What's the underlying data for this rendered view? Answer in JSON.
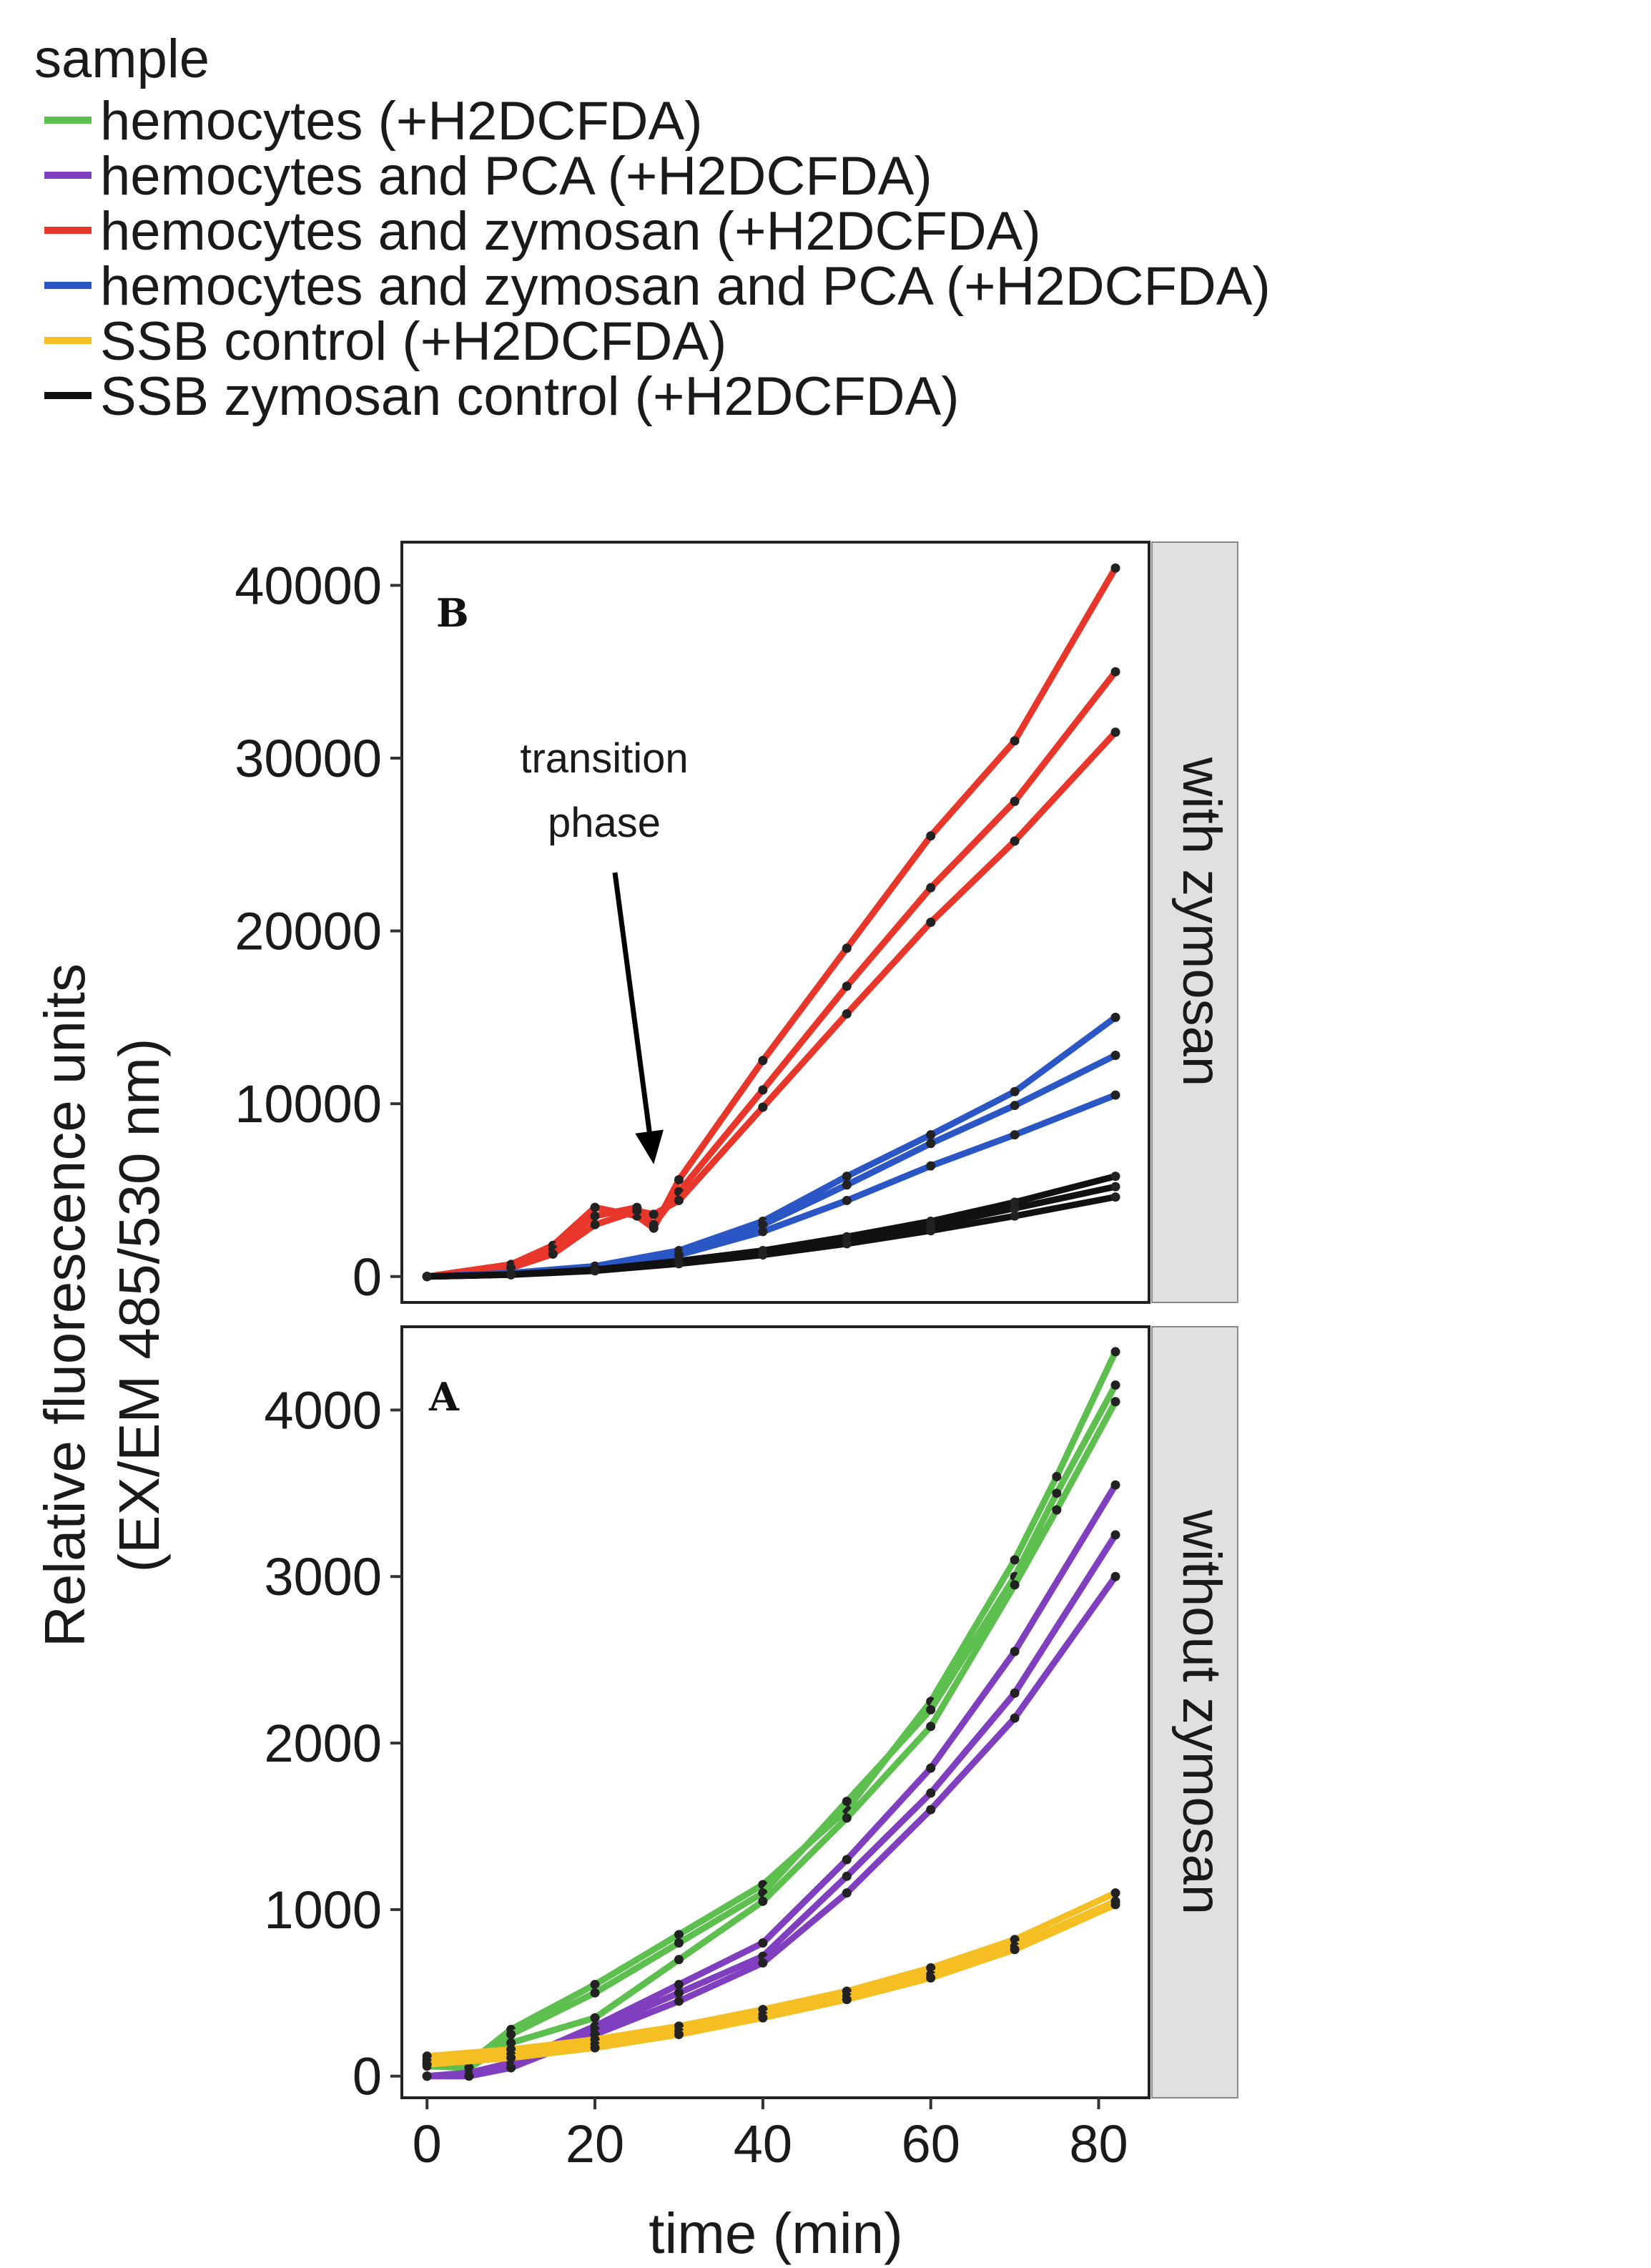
{
  "legend": {
    "title": "sample",
    "entries": [
      {
        "label": "hemocytes (+H2DCFDA)",
        "color": "#5cbf4e"
      },
      {
        "label": "hemocytes and PCA (+H2DCFDA)",
        "color": "#7f3fbf"
      },
      {
        "label": "hemocytes and zymosan (+H2DCFDA)",
        "color": "#e8372a"
      },
      {
        "label": "hemocytes and zymosan and PCA (+H2DCFDA)",
        "color": "#2a56c6"
      },
      {
        "label": "SSB control (+H2DCFDA)",
        "color": "#f5be23"
      },
      {
        "label": "SSB zymosan control (+H2DCFDA)",
        "color": "#111111"
      }
    ]
  },
  "axes": {
    "ylabel_line1": "Relative fluorescence units",
    "ylabel_line2": "(EX/EM 485/530 nm)",
    "xlabel": "time (min)"
  },
  "chart_data": [
    {
      "type": "line",
      "panel_label": "B",
      "strip_label": "with zymosan",
      "annotation": {
        "line1": "transition",
        "line2": "phase",
        "points_to_x": 27,
        "points_to_y": 6500
      },
      "xlim": [
        -3,
        86
      ],
      "ylim": [
        -1500,
        42500
      ],
      "x_ticks": [
        0,
        20,
        40,
        60,
        80
      ],
      "x_tick_labels": [
        "0",
        "20",
        "40",
        "60",
        "80"
      ],
      "y_ticks": [
        0,
        10000,
        20000,
        30000,
        40000
      ],
      "y_tick_labels": [
        "0",
        "10000",
        "20000",
        "30000",
        "40000"
      ],
      "series": [
        {
          "name": "hemocytes and zymosan (+H2DCFDA)",
          "color": "#e8372a",
          "x": [
            0,
            10,
            15,
            20,
            25,
            27,
            30,
            40,
            50,
            60,
            70,
            82
          ],
          "y": [
            0,
            700,
            1800,
            4000,
            3500,
            2800,
            5600,
            12500,
            19000,
            25500,
            31000,
            41000
          ]
        },
        {
          "name": "hemocytes and zymosan (+H2DCFDA)",
          "color": "#e8372a",
          "x": [
            0,
            10,
            15,
            20,
            25,
            27,
            30,
            40,
            50,
            60,
            70,
            82
          ],
          "y": [
            0,
            600,
            1600,
            3500,
            4000,
            3000,
            4900,
            10800,
            16800,
            22500,
            27500,
            35000
          ]
        },
        {
          "name": "hemocytes and zymosan (+H2DCFDA)",
          "color": "#e8372a",
          "x": [
            0,
            10,
            15,
            20,
            25,
            27,
            30,
            40,
            50,
            60,
            70,
            82
          ],
          "y": [
            0,
            500,
            1300,
            3000,
            3800,
            3600,
            4400,
            9800,
            15200,
            20500,
            25200,
            31500
          ]
        },
        {
          "name": "hemocytes and zymosan and PCA (+H2DCFDA)",
          "color": "#2a56c6",
          "x": [
            0,
            10,
            20,
            30,
            40,
            50,
            60,
            70,
            82
          ],
          "y": [
            0,
            200,
            600,
            1500,
            3200,
            5800,
            8200,
            10700,
            15000
          ]
        },
        {
          "name": "hemocytes and zymosan and PCA (+H2DCFDA)",
          "color": "#2a56c6",
          "x": [
            0,
            10,
            20,
            30,
            40,
            50,
            60,
            70,
            82
          ],
          "y": [
            0,
            180,
            550,
            1400,
            3000,
            5300,
            7700,
            9900,
            12800
          ]
        },
        {
          "name": "hemocytes and zymosan and PCA (+H2DCFDA)",
          "color": "#2a56c6",
          "x": [
            0,
            10,
            20,
            30,
            40,
            50,
            60,
            70,
            82
          ],
          "y": [
            0,
            150,
            500,
            1250,
            2600,
            4400,
            6400,
            8200,
            10500
          ]
        },
        {
          "name": "SSB zymosan control (+H2DCFDA)",
          "color": "#111111",
          "x": [
            0,
            10,
            20,
            30,
            40,
            50,
            60,
            70,
            82
          ],
          "y": [
            0,
            120,
            400,
            900,
            1500,
            2300,
            3200,
            4300,
            5800
          ]
        },
        {
          "name": "SSB zymosan control (+H2DCFDA)",
          "color": "#111111",
          "x": [
            0,
            10,
            20,
            30,
            40,
            50,
            60,
            70,
            82
          ],
          "y": [
            0,
            110,
            370,
            820,
            1380,
            2100,
            2950,
            3950,
            5200
          ]
        },
        {
          "name": "SSB zymosan control (+H2DCFDA)",
          "color": "#111111",
          "x": [
            0,
            10,
            20,
            30,
            40,
            50,
            60,
            70,
            82
          ],
          "y": [
            0,
            100,
            330,
            740,
            1250,
            1900,
            2650,
            3500,
            4600
          ]
        }
      ]
    },
    {
      "type": "line",
      "panel_label": "A",
      "strip_label": "without zymosan",
      "xlim": [
        -3,
        86
      ],
      "ylim": [
        -130,
        4500
      ],
      "x_ticks": [
        0,
        20,
        40,
        60,
        80
      ],
      "x_tick_labels": [
        "0",
        "20",
        "40",
        "60",
        "80"
      ],
      "y_ticks": [
        0,
        1000,
        2000,
        3000,
        4000
      ],
      "y_tick_labels": [
        "0",
        "1000",
        "2000",
        "3000",
        "4000"
      ],
      "series": [
        {
          "name": "hemocytes (+H2DCFDA)",
          "color": "#5cbf4e",
          "x": [
            0,
            5,
            10,
            20,
            30,
            40,
            50,
            60,
            70,
            75,
            82
          ],
          "y": [
            100,
            80,
            280,
            550,
            850,
            1150,
            1600,
            2250,
            3100,
            3600,
            4350
          ]
        },
        {
          "name": "hemocytes (+H2DCFDA)",
          "color": "#5cbf4e",
          "x": [
            0,
            5,
            10,
            20,
            30,
            40,
            50,
            60,
            70,
            75,
            82
          ],
          "y": [
            80,
            60,
            250,
            500,
            800,
            1100,
            1650,
            2200,
            3000,
            3500,
            4150
          ]
        },
        {
          "name": "hemocytes (+H2DCFDA)",
          "color": "#5cbf4e",
          "x": [
            0,
            5,
            10,
            20,
            30,
            40,
            50,
            60,
            70,
            75,
            82
          ],
          "y": [
            60,
            50,
            200,
            350,
            700,
            1050,
            1550,
            2100,
            2950,
            3400,
            4050
          ]
        },
        {
          "name": "hemocytes and PCA (+H2DCFDA)",
          "color": "#7f3fbf",
          "x": [
            0,
            5,
            10,
            20,
            30,
            40,
            50,
            60,
            70,
            82
          ],
          "y": [
            0,
            20,
            80,
            300,
            550,
            800,
            1300,
            1850,
            2550,
            3550
          ]
        },
        {
          "name": "hemocytes and PCA (+H2DCFDA)",
          "color": "#7f3fbf",
          "x": [
            0,
            5,
            10,
            20,
            30,
            40,
            50,
            60,
            70,
            82
          ],
          "y": [
            0,
            10,
            60,
            280,
            500,
            720,
            1200,
            1700,
            2300,
            3250
          ]
        },
        {
          "name": "hemocytes and PCA (+H2DCFDA)",
          "color": "#7f3fbf",
          "x": [
            0,
            5,
            10,
            20,
            30,
            40,
            50,
            60,
            70,
            82
          ],
          "y": [
            0,
            0,
            50,
            250,
            450,
            680,
            1100,
            1600,
            2150,
            3000
          ]
        },
        {
          "name": "SSB control (+H2DCFDA)",
          "color": "#f5be23",
          "x": [
            0,
            10,
            20,
            30,
            40,
            50,
            60,
            70,
            82
          ],
          "y": [
            120,
            160,
            220,
            300,
            400,
            510,
            650,
            820,
            1100
          ]
        },
        {
          "name": "SSB control (+H2DCFDA)",
          "color": "#f5be23",
          "x": [
            0,
            10,
            20,
            30,
            40,
            50,
            60,
            70,
            82
          ],
          "y": [
            90,
            130,
            190,
            270,
            370,
            480,
            610,
            780,
            1050
          ]
        },
        {
          "name": "SSB control (+H2DCFDA)",
          "color": "#f5be23",
          "x": [
            0,
            10,
            20,
            30,
            40,
            50,
            60,
            70,
            82
          ],
          "y": [
            70,
            110,
            170,
            250,
            350,
            460,
            590,
            760,
            1030
          ]
        }
      ]
    }
  ]
}
